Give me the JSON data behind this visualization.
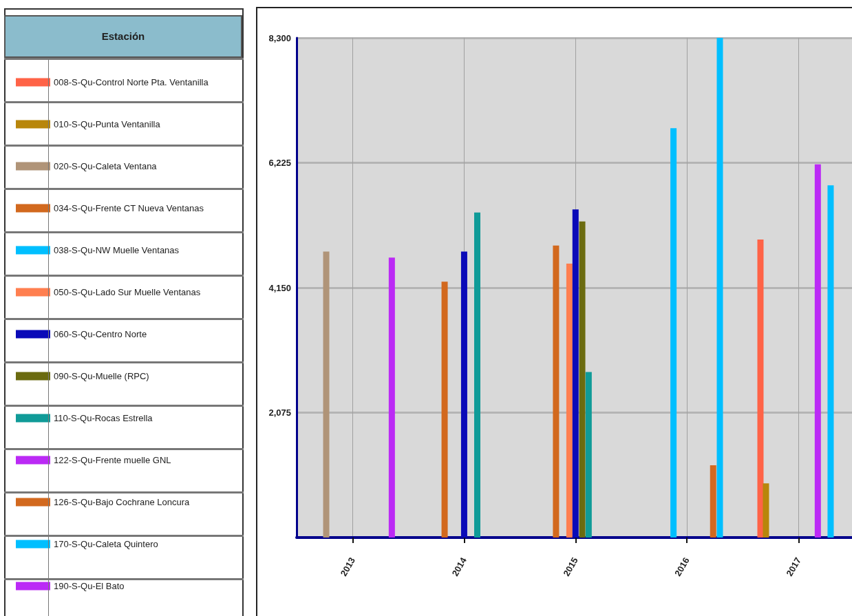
{
  "chart_data": {
    "type": "bar",
    "legend_title": "Estación",
    "legend": "left",
    "grid": true,
    "xlim": [
      "2012-07",
      "2017-06-25"
    ],
    "xticks": [
      "2013",
      "2014",
      "2015",
      "2016",
      "2017"
    ],
    "ylim": [
      0,
      8300
    ],
    "yticks": [
      {
        "value": 0,
        "label": null
      },
      {
        "value": 2075,
        "label": "2,075"
      },
      {
        "value": 4150,
        "label": "4,150"
      },
      {
        "value": 6225,
        "label": "6,225"
      },
      {
        "value": 8300,
        "label": "8,300"
      }
    ],
    "series": [
      {
        "name": "008-S-Qu-Control Norte Pta. Ventanilla",
        "color": "#ff6347",
        "x": [
          "2016-08-29"
        ],
        "values": [
          4950
        ]
      },
      {
        "name": "010-S-Qu-Punta Ventanilla",
        "color": "#b8860b",
        "x": [
          "2016-09-16"
        ],
        "values": [
          900
        ]
      },
      {
        "name": "020-S-Qu-Caleta Ventana",
        "color": "#b09478",
        "x": [
          "2012-10-06"
        ],
        "values": [
          4750
        ]
      },
      {
        "name": "034-S-Qu-Frente CT Nueva Ventanas",
        "color": "#d2691e",
        "x": [
          "2013-10-29",
          "2014-10-29"
        ],
        "values": [
          4250,
          4850
        ]
      },
      {
        "name": "038-S-Qu-NW Muelle Ventanas",
        "color": "#00bfff",
        "x": [
          "2015-11-18",
          "2016-04-18"
        ],
        "values": [
          6800,
          8300
        ]
      },
      {
        "name": "050-S-Qu-Lado Sur Muelle Ventanas",
        "color": "#ff7f50",
        "x": [
          "2014-12-12"
        ],
        "values": [
          4550
        ]
      },
      {
        "name": "060-S-Qu-Centro Norte",
        "color": "#0a0ab8",
        "x": [
          "2014-01-01",
          "2015-01-01"
        ],
        "values": [
          4750,
          5450
        ]
      },
      {
        "name": "090-S-Qu-Muelle (RPC)",
        "color": "#6b6b10",
        "x": [
          "2015-01-23"
        ],
        "values": [
          5250
        ]
      },
      {
        "name": "110-S-Qu-Rocas Estrella",
        "color": "#109b98",
        "x": [
          "2014-02-13",
          "2015-02-13"
        ],
        "values": [
          5400,
          2750
        ]
      },
      {
        "name": "122-S-Qu-Frente muelle GNL",
        "color": "#bb2af5",
        "x": [
          "2013-05-09"
        ],
        "values": [
          4650
        ]
      },
      {
        "name": "126-S-Qu-Bajo Cochrane Loncura",
        "color": "#d2691f",
        "x": [
          "2016-03-27"
        ],
        "values": [
          1200
        ]
      },
      {
        "name": "170-S-Qu-Caleta Quintero",
        "color": "#00bfff",
        "x": [
          "2017-04-16"
        ],
        "values": [
          5850
        ]
      },
      {
        "name": "190-S-Qu-El Bato",
        "color": "#bb2af6",
        "x": [
          "2017-03-05"
        ],
        "values": [
          6200
        ]
      }
    ]
  }
}
